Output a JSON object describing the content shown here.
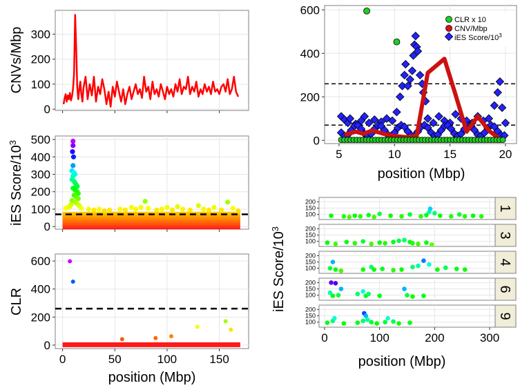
{
  "colors": {
    "panel_bg": "#ffffff",
    "panel_border": "#7f7f7f",
    "grid_major": "#e6e6e6",
    "grid_minor": "#f2f2f2",
    "strip_bg": "#f0edd9",
    "cnv_line": "#ff0000",
    "cnv_thick": "#cc1111",
    "clr_point": "#22cc22",
    "ies_point": "#2222ff",
    "threshold": "#000000"
  },
  "chart_data": [
    {
      "id": "cnv_genome",
      "type": "line",
      "ylabel": "CNVs/Mbp",
      "xlim": [
        -7,
        178
      ],
      "ylim": [
        -5,
        395
      ],
      "yticks": [
        0,
        100,
        200,
        300
      ],
      "xticks": [
        0,
        50,
        100,
        150
      ],
      "show_x_tick_labels": false,
      "series": [
        {
          "x": [
            1,
            2,
            3,
            4,
            5,
            6,
            7,
            8,
            9,
            10,
            11,
            12,
            13,
            14,
            15,
            16,
            17,
            18,
            19,
            20,
            22,
            24,
            26,
            28,
            30,
            32,
            34,
            36,
            38,
            40,
            42,
            44,
            46,
            48,
            50,
            52,
            54,
            56,
            58,
            60,
            62,
            64,
            66,
            68,
            70,
            72,
            74,
            76,
            78,
            80,
            82,
            84,
            86,
            88,
            90,
            92,
            94,
            96,
            98,
            100,
            102,
            104,
            106,
            108,
            110,
            112,
            114,
            116,
            118,
            120,
            122,
            124,
            126,
            128,
            130,
            132,
            134,
            136,
            138,
            140,
            142,
            144,
            146,
            148,
            150,
            152,
            154,
            156,
            158,
            160,
            162,
            164,
            166,
            168
          ],
          "y": [
            20,
            45,
            60,
            30,
            55,
            40,
            65,
            35,
            50,
            80,
            140,
            377,
            250,
            90,
            40,
            80,
            110,
            60,
            30,
            85,
            130,
            40,
            100,
            55,
            130,
            30,
            90,
            60,
            120,
            80,
            20,
            70,
            10,
            90,
            50,
            110,
            70,
            30,
            80,
            20,
            60,
            90,
            40,
            70,
            100,
            60,
            80,
            45,
            130,
            70,
            90,
            40,
            110,
            60,
            80,
            50,
            100,
            70,
            40,
            90,
            60,
            80,
            50,
            100,
            70,
            120,
            60,
            90,
            80,
            130,
            60,
            90,
            70,
            110,
            50,
            80,
            60,
            100,
            70,
            90,
            60,
            110,
            70,
            80,
            60,
            90,
            100,
            70,
            120,
            60,
            80,
            130,
            70,
            50
          ]
        }
      ]
    },
    {
      "id": "ies_genome",
      "type": "scatter",
      "ylabel": "iES Score/10",
      "ylabel_sup": "3",
      "xlim": [
        -7,
        178
      ],
      "ylim": [
        -15,
        520
      ],
      "yticks": [
        0,
        100,
        200,
        300,
        400,
        500
      ],
      "ytick_labels": [
        "0",
        "100",
        "200",
        "300",
        "400",
        "500"
      ],
      "xticks": [
        0,
        50,
        100,
        150
      ],
      "show_x_tick_labels": false,
      "threshold": 70,
      "points": [
        [
          10,
          490
        ],
        [
          10,
          465
        ],
        [
          9.5,
          430
        ],
        [
          10.5,
          400
        ],
        [
          10,
          350
        ],
        [
          9,
          320
        ],
        [
          11,
          310
        ],
        [
          12,
          300
        ],
        [
          10,
          290
        ],
        [
          9,
          270
        ],
        [
          11,
          260
        ],
        [
          12,
          250
        ],
        [
          13,
          240
        ],
        [
          14,
          230
        ],
        [
          10,
          220
        ],
        [
          12,
          210
        ],
        [
          14,
          200
        ],
        [
          15,
          190
        ],
        [
          11,
          180
        ],
        [
          13,
          170
        ],
        [
          15,
          160
        ],
        [
          9,
          150
        ],
        [
          12,
          140
        ],
        [
          14,
          130
        ],
        [
          8,
          125
        ],
        [
          16,
          120
        ],
        [
          5,
          110
        ],
        [
          7,
          115
        ],
        [
          3,
          105
        ],
        [
          18,
          105
        ],
        [
          25,
          100
        ],
        [
          30,
          95
        ],
        [
          35,
          100
        ],
        [
          40,
          90
        ],
        [
          45,
          95
        ],
        [
          55,
          100
        ],
        [
          60,
          95
        ],
        [
          66,
          110
        ],
        [
          70,
          100
        ],
        [
          75,
          110
        ],
        [
          79,
          145
        ],
        [
          82,
          105
        ],
        [
          90,
          95
        ],
        [
          95,
          100
        ],
        [
          100,
          110
        ],
        [
          105,
          95
        ],
        [
          110,
          115
        ],
        [
          115,
          100
        ],
        [
          122,
          95
        ],
        [
          130,
          120
        ],
        [
          135,
          100
        ],
        [
          140,
          95
        ],
        [
          145,
          110
        ],
        [
          152,
          95
        ],
        [
          158,
          140
        ],
        [
          163,
          105
        ],
        [
          168,
          90
        ]
      ]
    },
    {
      "id": "clr_genome",
      "type": "scatter",
      "ylabel": "CLR",
      "xlabel": "position (Mbp)",
      "xlim": [
        -7,
        178
      ],
      "ylim": [
        -25,
        650
      ],
      "yticks": [
        0,
        200,
        400,
        600
      ],
      "xticks": [
        0,
        50,
        100,
        150
      ],
      "threshold": 260,
      "points": [
        [
          7,
          598
        ],
        [
          10,
          453
        ],
        [
          57,
          42
        ],
        [
          89,
          50
        ],
        [
          104,
          63
        ],
        [
          129,
          130
        ],
        [
          156,
          170
        ],
        [
          161,
          110
        ]
      ]
    },
    {
      "id": "zoom_chr1",
      "type": "scatter",
      "xlabel": "position (Mbp)",
      "xlim": [
        3.7,
        21
      ],
      "ylim": [
        -15,
        620
      ],
      "yticks": [
        0,
        200,
        400,
        600
      ],
      "xticks": [
        5,
        10,
        15,
        20
      ],
      "thresholds": [
        260,
        70
      ],
      "legend": [
        "CLR x 10",
        "CNV/Mbp",
        "iES Score/10"
      ],
      "legend_sup": "3",
      "legend_position": "top-right",
      "series": [
        {
          "name": "CLR x 10",
          "points": [
            [
              7.5,
              595
            ],
            [
              10.2,
              453
            ]
          ],
          "baseline_x": [
            5.2,
            20
          ]
        },
        {
          "name": "CNV/Mbp",
          "x": [
            5.5,
            6.5,
            7.2,
            8,
            9,
            10,
            11,
            12,
            13,
            14.5,
            15.5,
            16.5,
            17.5,
            18.5,
            19.5
          ],
          "y": [
            25,
            40,
            30,
            45,
            30,
            20,
            15,
            20,
            310,
            375,
            210,
            40,
            110,
            45,
            5
          ]
        },
        {
          "name": "iES Score/10",
          "points": [
            [
              5.2,
              110
            ],
            [
              5.5,
              95
            ],
            [
              5.8,
              80
            ],
            [
              6,
              100
            ],
            [
              6.5,
              75
            ],
            [
              7,
              90
            ],
            [
              7.3,
              110
            ],
            [
              7.7,
              80
            ],
            [
              8.2,
              95
            ],
            [
              8.8,
              85
            ],
            [
              9.3,
              100
            ],
            [
              9.8,
              90
            ],
            [
              10.2,
              130
            ],
            [
              10.5,
              200
            ],
            [
              10.7,
              250
            ],
            [
              10.9,
              300
            ],
            [
              11,
              350
            ],
            [
              11.2,
              250
            ],
            [
              11.4,
              280
            ],
            [
              11.6,
              320
            ],
            [
              11.7,
              390
            ],
            [
              11.8,
              440
            ],
            [
              11.9,
              480
            ],
            [
              12,
              430
            ],
            [
              12.1,
              410
            ],
            [
              12.3,
              300
            ],
            [
              12.5,
              260
            ],
            [
              12.6,
              220
            ],
            [
              12.8,
              180
            ],
            [
              13,
              100
            ],
            [
              13.5,
              80
            ],
            [
              14,
              110
            ],
            [
              14.5,
              90
            ],
            [
              15,
              80
            ],
            [
              15.5,
              120
            ],
            [
              16,
              100
            ],
            [
              16.5,
              90
            ],
            [
              17,
              80
            ],
            [
              17.5,
              110
            ],
            [
              18,
              90
            ],
            [
              18.5,
              100
            ],
            [
              19,
              160
            ],
            [
              19.3,
              220
            ],
            [
              19.5,
              270
            ],
            [
              19.7,
              150
            ],
            [
              20,
              80
            ]
          ]
        }
      ]
    },
    {
      "id": "zoom_facets",
      "type": "scatter",
      "ylabel": "iES Score/10",
      "ylabel_sup": "3",
      "xlabel": "position (Mbp)",
      "xlim": [
        -10,
        310
      ],
      "xticks": [
        0,
        100,
        200,
        300
      ],
      "ylim": [
        60,
        235
      ],
      "yticks": [
        100,
        150,
        200
      ],
      "facets": [
        {
          "label": "1",
          "points": [
            [
              12,
              90
            ],
            [
              35,
              85
            ],
            [
              45,
              80
            ],
            [
              55,
              90
            ],
            [
              65,
              85
            ],
            [
              80,
              95
            ],
            [
              90,
              80
            ],
            [
              100,
              105
            ],
            [
              120,
              90
            ],
            [
              140,
              85
            ],
            [
              155,
              100
            ],
            [
              175,
              85
            ],
            [
              185,
              95
            ],
            [
              190,
              120
            ],
            [
              192,
              145
            ],
            [
              200,
              110
            ],
            [
              210,
              90
            ],
            [
              230,
              85
            ],
            [
              245,
              100
            ],
            [
              255,
              85
            ],
            [
              270,
              90
            ],
            [
              285,
              85
            ]
          ]
        },
        {
          "label": "3",
          "points": [
            [
              5,
              90
            ],
            [
              20,
              80
            ],
            [
              40,
              95
            ],
            [
              55,
              85
            ],
            [
              70,
              100
            ],
            [
              85,
              80
            ],
            [
              100,
              90
            ],
            [
              110,
              85
            ],
            [
              125,
              95
            ],
            [
              135,
              105
            ],
            [
              145,
              110
            ],
            [
              155,
              95
            ],
            [
              160,
              85
            ],
            [
              170,
              80
            ],
            [
              185,
              90
            ],
            [
              195,
              75
            ]
          ]
        },
        {
          "label": "4",
          "points": [
            [
              10,
              100
            ],
            [
              15,
              150
            ],
            [
              20,
              90
            ],
            [
              30,
              80
            ],
            [
              70,
              90
            ],
            [
              85,
              110
            ],
            [
              90,
              90
            ],
            [
              105,
              95
            ],
            [
              125,
              85
            ],
            [
              140,
              90
            ],
            [
              160,
              110
            ],
            [
              170,
              120
            ],
            [
              180,
              160
            ],
            [
              190,
              130
            ],
            [
              205,
              90
            ],
            [
              220,
              105
            ],
            [
              240,
              95
            ],
            [
              255,
              90
            ]
          ]
        },
        {
          "label": "6",
          "points": [
            [
              12,
              200
            ],
            [
              20,
              195
            ],
            [
              10,
              120
            ],
            [
              15,
              95
            ],
            [
              25,
              100
            ],
            [
              30,
              150
            ],
            [
              60,
              110
            ],
            [
              70,
              130
            ],
            [
              75,
              95
            ],
            [
              80,
              110
            ],
            [
              100,
              95
            ],
            [
              145,
              150
            ],
            [
              150,
              100
            ],
            [
              160,
              90
            ],
            [
              180,
              95
            ]
          ]
        },
        {
          "label": "9",
          "points": [
            [
              5,
              95
            ],
            [
              15,
              110
            ],
            [
              18,
              130
            ],
            [
              35,
              90
            ],
            [
              60,
              95
            ],
            [
              70,
              110
            ],
            [
              72,
              170
            ],
            [
              75,
              150
            ],
            [
              78,
              120
            ],
            [
              85,
              100
            ],
            [
              95,
              90
            ],
            [
              110,
              100
            ],
            [
              115,
              130
            ],
            [
              125,
              105
            ],
            [
              135,
              90
            ],
            [
              155,
              95
            ]
          ]
        }
      ]
    }
  ]
}
